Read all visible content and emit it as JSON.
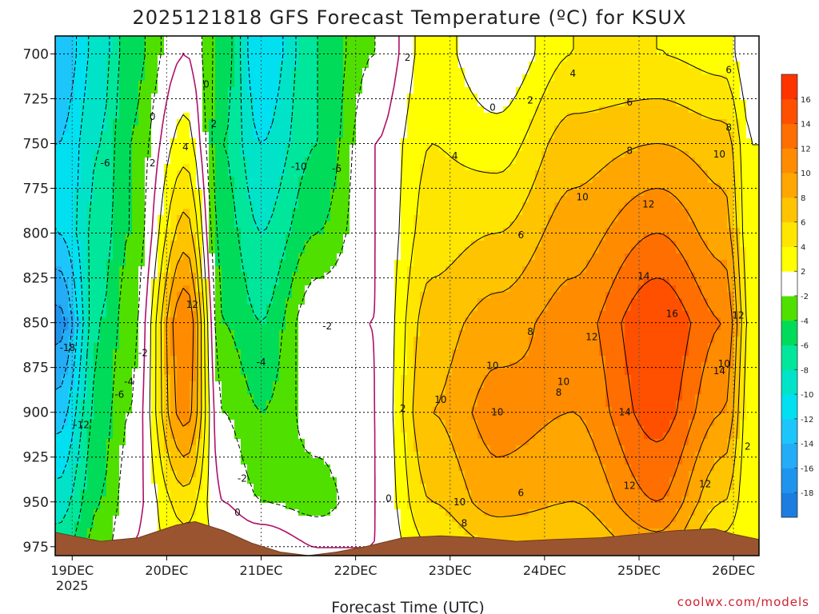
{
  "chart_data": {
    "type": "heatmap",
    "title": "2025121818 GFS Forecast Temperature (ºC) for KSUX",
    "xlabel": "Forecast Time (UTC)",
    "ylabel": "",
    "credit": "coolwx.com/models",
    "x_ticks": [
      "19DEC",
      "20DEC",
      "21DEC",
      "22DEC",
      "23DEC",
      "24DEC",
      "25DEC",
      "26DEC"
    ],
    "x_year_label": "2025",
    "y_ticks": [
      "700",
      "725",
      "750",
      "775",
      "800",
      "825",
      "850",
      "875",
      "900",
      "925",
      "950",
      "975"
    ],
    "ylim": [
      980,
      690
    ],
    "xlim_days": [
      18.82,
      26.27
    ],
    "colorbar": {
      "levels": [
        -20,
        -18,
        -16,
        -14,
        -12,
        -10,
        -8,
        -6,
        -4,
        -2,
        2,
        4,
        6,
        8,
        10,
        12,
        14,
        16,
        18
      ],
      "tick_labels": [
        "-18",
        "-16",
        "-14",
        "-12",
        "-10",
        "-8",
        "-6",
        "-4",
        "-2",
        "2",
        "4",
        "6",
        "8",
        "10",
        "12",
        "14",
        "16"
      ],
      "colors": [
        "#1b7de0",
        "#1f94ee",
        "#24acf6",
        "#1cc6fa",
        "#00e0f0",
        "#00e3c8",
        "#00e69a",
        "#00dc5a",
        "#50e000",
        "#ffffff",
        "#ffff00",
        "#ffe600",
        "#ffc400",
        "#ffa600",
        "#ff8c00",
        "#ff6e00",
        "#ff5000",
        "#ff3300"
      ]
    },
    "series": [
      {
        "name": "temperature columns",
        "profiles": [
          {
            "t": 18.85,
            "temps": {
              "700": -14,
              "750": -12,
              "800": -12,
              "850": -17,
              "900": -13,
              "950": -9,
              "975": -7
            }
          },
          {
            "t": 19.3,
            "temps": {
              "700": -9,
              "750": -8,
              "800": -7,
              "850": -6,
              "900": -5,
              "950": -4,
              "975": -3
            }
          },
          {
            "t": 19.6,
            "temps": {
              "700": -5,
              "750": -4,
              "800": -4,
              "850": -3,
              "900": -2,
              "950": -1,
              "975": 0
            }
          },
          {
            "t": 20.2,
            "temps": {
              "700": 0,
              "750": 3,
              "800": 7,
              "850": 12,
              "900": 11,
              "950": 5,
              "975": 3
            }
          },
          {
            "t": 20.6,
            "temps": {
              "700": -5,
              "750": -6,
              "800": -5,
              "850": -4,
              "900": -2,
              "950": 0,
              "975": 2
            }
          },
          {
            "t": 21.0,
            "temps": {
              "700": -12,
              "750": -10,
              "800": -8,
              "850": -6,
              "900": -4,
              "950": -2,
              "975": 2
            }
          },
          {
            "t": 21.6,
            "temps": {
              "700": -6,
              "750": -6,
              "800": -4,
              "850": 0,
              "900": -1,
              "950": -3,
              "975": 0
            }
          },
          {
            "t": 22.2,
            "temps": {
              "700": -2,
              "750": 0,
              "800": 0,
              "850": 0,
              "900": 0,
              "950": 0,
              "975": 0
            }
          },
          {
            "t": 22.8,
            "temps": {
              "700": 3,
              "750": 4,
              "800": 5,
              "850": 7,
              "900": 8,
              "950": 6,
              "975": 4
            }
          },
          {
            "t": 23.5,
            "temps": {
              "700": 0,
              "750": 3,
              "800": 6,
              "850": 9,
              "900": 11,
              "950": 9,
              "975": 6
            }
          },
          {
            "t": 24.3,
            "temps": {
              "700": 4,
              "750": 7,
              "800": 9,
              "850": 11,
              "900": 10,
              "950": 8,
              "975": 6
            }
          },
          {
            "t": 25.2,
            "temps": {
              "700": 4,
              "750": 8,
              "800": 12,
              "850": 16,
              "900": 15,
              "950": 12,
              "975": 9
            }
          },
          {
            "t": 25.9,
            "temps": {
              "700": 3,
              "750": 7,
              "800": 9,
              "850": 12,
              "900": 10,
              "950": 6,
              "975": 3
            }
          },
          {
            "t": 26.2,
            "temps": {
              "700": 0,
              "750": 2,
              "800": 2,
              "850": 3,
              "900": 2,
              "950": 2,
              "975": 2
            }
          }
        ]
      },
      {
        "name": "terrain surface pressure",
        "x": [
          18.82,
          19.3,
          19.7,
          20.1,
          20.3,
          20.6,
          20.9,
          21.2,
          21.5,
          21.8,
          22.1,
          22.5,
          22.9,
          23.3,
          23.7,
          24.1,
          24.6,
          25.0,
          25.4,
          25.8,
          26.0,
          26.27
        ],
        "values": [
          967,
          972,
          970,
          963,
          961,
          966,
          973,
          978,
          980,
          978,
          975,
          970,
          969,
          970,
          972,
          971,
          970,
          968,
          966,
          965,
          968,
          971
        ]
      }
    ],
    "contour_labels": [
      {
        "text": "0",
        "t": 20.42,
        "p": 717
      },
      {
        "text": "0",
        "t": 19.85,
        "p": 735
      },
      {
        "text": "2",
        "t": 20.5,
        "p": 739
      },
      {
        "text": "4",
        "t": 20.2,
        "p": 752
      },
      {
        "text": "2",
        "t": 19.85,
        "p": 761
      },
      {
        "text": "-6",
        "t": 19.35,
        "p": 761
      },
      {
        "text": "-10",
        "t": 21.4,
        "p": 763
      },
      {
        "text": "-6",
        "t": 21.8,
        "p": 764
      },
      {
        "text": "12",
        "t": 20.27,
        "p": 840
      },
      {
        "text": "-18",
        "t": 18.95,
        "p": 864
      },
      {
        "text": "-2",
        "t": 19.75,
        "p": 867
      },
      {
        "text": "-4",
        "t": 19.6,
        "p": 883
      },
      {
        "text": "-6",
        "t": 19.5,
        "p": 890
      },
      {
        "text": "-12",
        "t": 19.1,
        "p": 907
      },
      {
        "text": "-2",
        "t": 21.7,
        "p": 852
      },
      {
        "text": "-4",
        "t": 21.0,
        "p": 872
      },
      {
        "text": "-2",
        "t": 20.8,
        "p": 937
      },
      {
        "text": "0",
        "t": 20.75,
        "p": 956
      },
      {
        "text": "2",
        "t": 22.55,
        "p": 702
      },
      {
        "text": "0",
        "t": 23.45,
        "p": 730
      },
      {
        "text": "2",
        "t": 23.85,
        "p": 726
      },
      {
        "text": "4",
        "t": 24.3,
        "p": 711
      },
      {
        "text": "6",
        "t": 24.9,
        "p": 727
      },
      {
        "text": "6",
        "t": 25.95,
        "p": 709
      },
      {
        "text": "8",
        "t": 25.95,
        "p": 741
      },
      {
        "text": "8",
        "t": 24.9,
        "p": 754
      },
      {
        "text": "10",
        "t": 25.85,
        "p": 756
      },
      {
        "text": "4",
        "t": 23.05,
        "p": 757
      },
      {
        "text": "10",
        "t": 24.4,
        "p": 780
      },
      {
        "text": "12",
        "t": 25.1,
        "p": 784
      },
      {
        "text": "6",
        "t": 23.75,
        "p": 801
      },
      {
        "text": "14",
        "t": 25.05,
        "p": 824
      },
      {
        "text": "16",
        "t": 25.35,
        "p": 845
      },
      {
        "text": "12",
        "t": 26.05,
        "p": 846
      },
      {
        "text": "8",
        "t": 23.85,
        "p": 855
      },
      {
        "text": "12",
        "t": 24.5,
        "p": 858
      },
      {
        "text": "10",
        "t": 23.45,
        "p": 874
      },
      {
        "text": "10",
        "t": 24.2,
        "p": 883
      },
      {
        "text": "8",
        "t": 24.15,
        "p": 889
      },
      {
        "text": "14",
        "t": 25.85,
        "p": 877
      },
      {
        "text": "10",
        "t": 25.9,
        "p": 873
      },
      {
        "text": "10",
        "t": 22.9,
        "p": 893
      },
      {
        "text": "2",
        "t": 22.5,
        "p": 898
      },
      {
        "text": "10",
        "t": 23.5,
        "p": 900
      },
      {
        "text": "14",
        "t": 24.85,
        "p": 900
      },
      {
        "text": "2",
        "t": 26.15,
        "p": 919
      },
      {
        "text": "12",
        "t": 24.9,
        "p": 941
      },
      {
        "text": "12",
        "t": 25.7,
        "p": 940
      },
      {
        "text": "6",
        "t": 23.75,
        "p": 945
      },
      {
        "text": "0",
        "t": 22.35,
        "p": 948
      },
      {
        "text": "10",
        "t": 23.1,
        "p": 950
      },
      {
        "text": "8",
        "t": 23.15,
        "p": 962
      }
    ]
  }
}
